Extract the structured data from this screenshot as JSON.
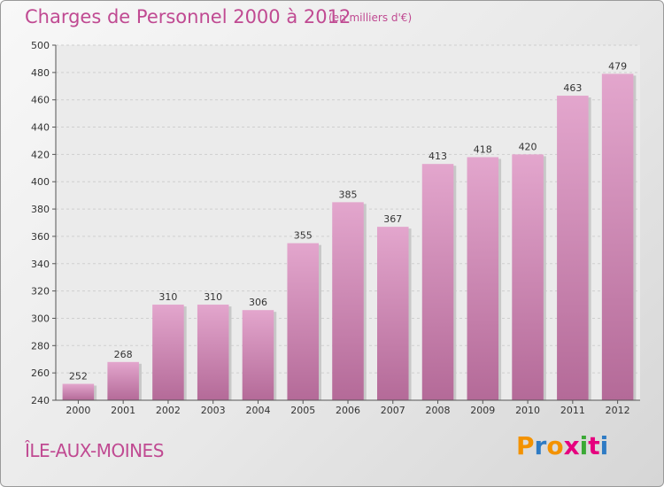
{
  "header": {
    "title": "Charges de Personnel 2000 à 2012",
    "subtitle": "(en milliers d'€)"
  },
  "footer": {
    "place": "ÎLE-AUX-MOINES",
    "logo_letters": [
      "P",
      "r",
      "o",
      "x",
      "i",
      "t",
      "i"
    ],
    "logo_colors": [
      "#f39200",
      "#2e7bc4",
      "#f39200",
      "#e6007e",
      "#3aa935",
      "#e6007e",
      "#2e7bc4"
    ]
  },
  "colors": {
    "bar_top": "#e3a6cd",
    "bar_bottom": "#b46a98",
    "accent": "#c04a92"
  },
  "chart_data": {
    "type": "bar",
    "title": "Charges de Personnel 2000 à 2012",
    "subtitle": "(en milliers d'€)",
    "categories": [
      "2000",
      "2001",
      "2002",
      "2003",
      "2004",
      "2005",
      "2006",
      "2007",
      "2008",
      "2009",
      "2010",
      "2011",
      "2012"
    ],
    "values": [
      252,
      268,
      310,
      310,
      306,
      355,
      385,
      367,
      413,
      418,
      420,
      463,
      479
    ],
    "ylim": [
      240,
      500
    ],
    "yticks": [
      240,
      260,
      280,
      300,
      320,
      340,
      360,
      380,
      400,
      420,
      440,
      460,
      480,
      500
    ],
    "grid": true,
    "data_labels": true
  }
}
